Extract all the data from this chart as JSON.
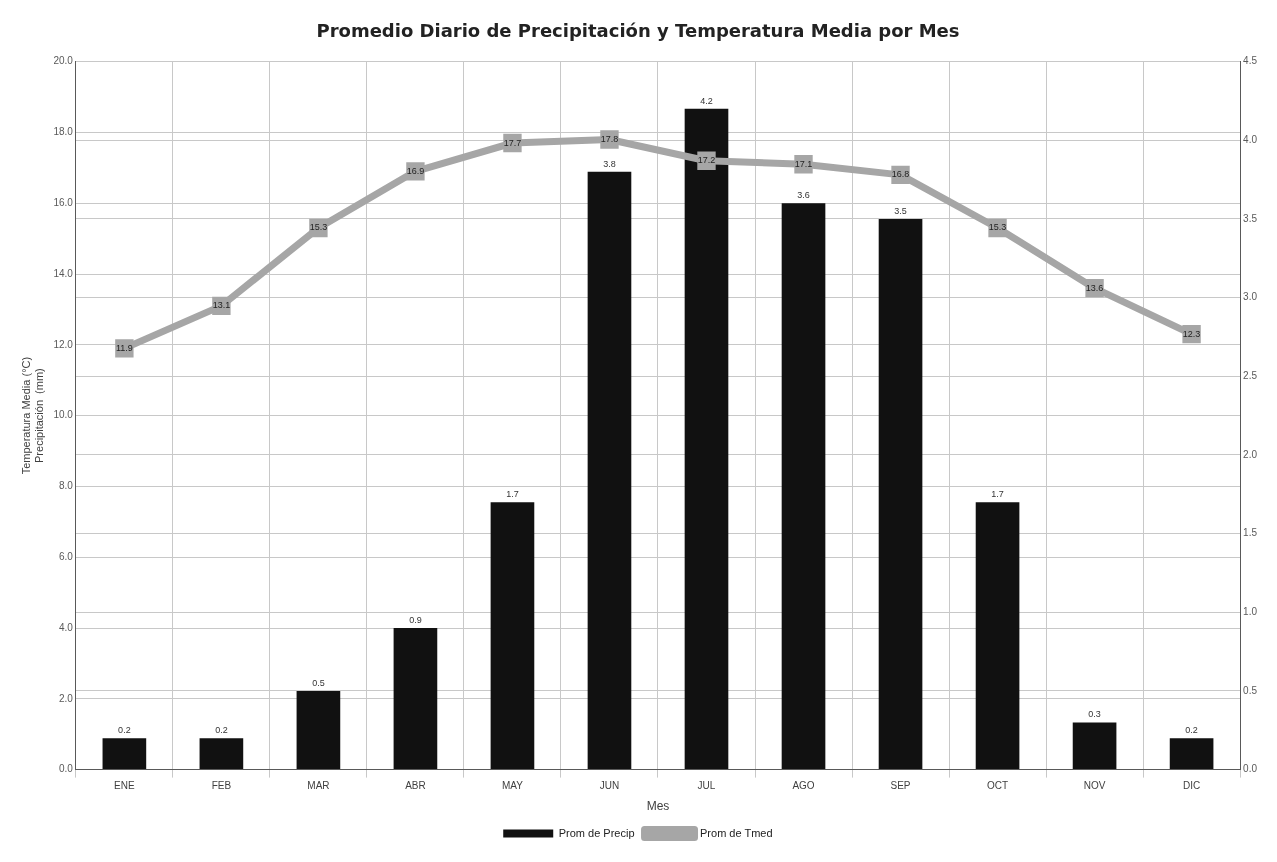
{
  "chart_data": {
    "type": "bar",
    "title": "Promedio Diario de Precipitación y Temperatura Media por Mes",
    "xlabel": "Mes",
    "ylabel": "Temperatura Media (°C)\nPrecipitación  (mm)",
    "categories": [
      "ENE",
      "FEB",
      "MAR",
      "ABR",
      "MAY",
      "JUN",
      "JUL",
      "AGO",
      "SEP",
      "OCT",
      "NOV",
      "DIC"
    ],
    "series": [
      {
        "name": "Prom de Precip",
        "axis": "y2",
        "color": "#111111",
        "values": [
          0.2,
          0.2,
          0.5,
          0.9,
          1.7,
          3.8,
          4.2,
          3.6,
          3.5,
          1.7,
          0.3,
          0.2
        ]
      },
      {
        "name": "Prom de Tmed",
        "type": "line",
        "color": "#a6a6a6",
        "values": [
          11.9,
          13.1,
          15.3,
          16.9,
          17.7,
          17.8,
          17.2,
          17.1,
          16.8,
          15.3,
          13.6,
          12.3
        ]
      }
    ],
    "ylim": [
      0,
      20
    ],
    "yticks": [
      {
        "value": 0,
        "label": "0.0"
      },
      {
        "value": 2,
        "label": "2.0"
      },
      {
        "value": 4,
        "label": "4.0"
      },
      {
        "value": 6,
        "label": "6.0"
      },
      {
        "value": 8,
        "label": "8.0"
      },
      {
        "value": 10,
        "label": "10.0"
      },
      {
        "value": 12,
        "label": "12.0"
      },
      {
        "value": 14,
        "label": "14.0"
      },
      {
        "value": 16,
        "label": "16.0"
      },
      {
        "value": 18,
        "label": "18.0"
      },
      {
        "value": 20,
        "label": "20.0"
      }
    ],
    "y2lim": [
      0,
      4.5
    ],
    "y2ticks": [
      {
        "value": 0,
        "label": "0.0"
      },
      0.5,
      {
        "value": 1,
        "label": "1.0"
      },
      1.5,
      {
        "value": 2,
        "label": "2.0"
      },
      2.5,
      {
        "value": 3,
        "label": "3.0"
      },
      3.5,
      {
        "value": 4,
        "label": "4.0"
      },
      4.5
    ],
    "grid": true,
    "legend": "bottom",
    "marker": "square",
    "line_style": "solid",
    "data_labels": true
  }
}
